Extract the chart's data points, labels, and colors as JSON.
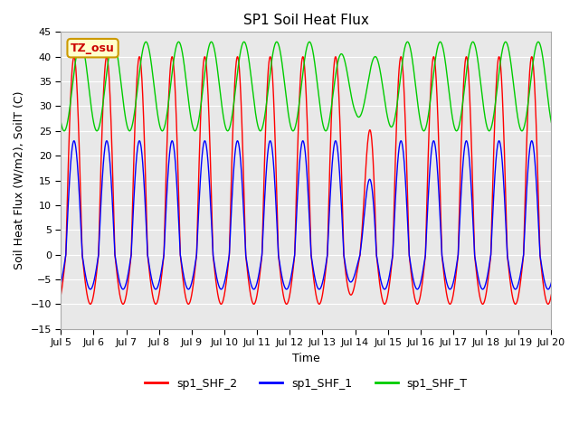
{
  "title": "SP1 Soil Heat Flux",
  "xlabel": "Time",
  "ylabel": "Soil Heat Flux (W/m2), SoilT (C)",
  "ylim": [
    -15,
    45
  ],
  "yticks": [
    -15,
    -10,
    -5,
    0,
    5,
    10,
    15,
    20,
    25,
    30,
    35,
    40,
    45
  ],
  "xtick_labels": [
    "Jul 5",
    "Jul 6",
    "Jul 7",
    "Jul 8",
    "Jul 9",
    "Jul 10",
    "Jul 11",
    "Jul 12",
    "Jul 13",
    "Jul 14",
    "Jul 15",
    "Jul 16",
    "Jul 17",
    "Jul 18",
    "Jul 19",
    "Jul 20"
  ],
  "annotation_text": "TZ_osu",
  "annotation_bg": "#ffffcc",
  "annotation_border": "#cc9900",
  "line_colors": {
    "sp1_SHF_2": "#ff0000",
    "sp1_SHF_1": "#0000ff",
    "sp1_SHF_T": "#00cc00"
  },
  "legend_labels": [
    "sp1_SHF_2",
    "sp1_SHF_1",
    "sp1_SHF_T"
  ],
  "bg_color": "#e8e8e8",
  "fig_bg_color": "#ffffff",
  "n_days": 15
}
